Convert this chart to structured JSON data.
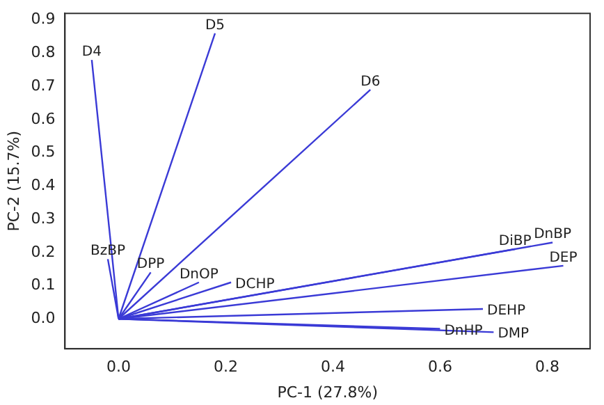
{
  "chart_data": {
    "type": "line",
    "xlabel": "PC-1 (27.8%)",
    "ylabel": "PC-2 (15.7%)",
    "xlim": [
      -0.1,
      0.88
    ],
    "xticks": [
      {
        "value": 0,
        "label": "0.0"
      },
      0.2,
      0.4,
      0.6,
      0.8
    ],
    "ylim": [
      -0.09,
      0.92
    ],
    "yticks": [
      {
        "value": 0,
        "label": "0.0"
      },
      0.1,
      0.2,
      0.3,
      0.4,
      0.5,
      0.6,
      0.7,
      0.8,
      0.9
    ],
    "grid": false,
    "legend": false,
    "marker": "none",
    "line_style": "solid",
    "series": [
      {
        "name": "D4",
        "color": "#3a3ad6",
        "x": [
          0,
          -0.05
        ],
        "values": [
          0,
          0.78
        ]
      },
      {
        "name": "D5",
        "color": "#3a3ad6",
        "x": [
          0,
          0.18
        ],
        "values": [
          0,
          0.86
        ]
      },
      {
        "name": "D6",
        "color": "#3a3ad6",
        "x": [
          0,
          0.47
        ],
        "values": [
          0,
          0.69
        ]
      },
      {
        "name": "BzBP",
        "color": "#3a3ad6",
        "x": [
          0,
          -0.02
        ],
        "values": [
          0,
          0.18
        ]
      },
      {
        "name": "DPP",
        "color": "#3a3ad6",
        "x": [
          0,
          0.06
        ],
        "values": [
          0,
          0.14
        ]
      },
      {
        "name": "DnOP",
        "color": "#3a3ad6",
        "x": [
          0,
          0.15
        ],
        "values": [
          0,
          0.11
        ]
      },
      {
        "name": "DCHP",
        "color": "#3a3ad6",
        "x": [
          0,
          0.21
        ],
        "values": [
          0,
          0.11
        ]
      },
      {
        "name": "DiBP",
        "color": "#3a3ad6",
        "x": [
          0,
          0.74
        ],
        "values": [
          0,
          0.21
        ]
      },
      {
        "name": "DnBP",
        "color": "#3a3ad6",
        "x": [
          0,
          0.81
        ],
        "values": [
          0,
          0.23
        ]
      },
      {
        "name": "DEP",
        "color": "#3a3ad6",
        "x": [
          0,
          0.83
        ],
        "values": [
          0,
          0.16
        ]
      },
      {
        "name": "DEHP",
        "color": "#3a3ad6",
        "x": [
          0,
          0.68
        ],
        "values": [
          0,
          0.03
        ]
      },
      {
        "name": "DnHP",
        "color": "#3a3ad6",
        "x": [
          0,
          0.6
        ],
        "values": [
          0,
          -0.03
        ]
      },
      {
        "name": "DMP",
        "color": "#3a3ad6",
        "x": [
          0,
          0.7
        ],
        "values": [
          0,
          -0.04
        ]
      }
    ]
  }
}
